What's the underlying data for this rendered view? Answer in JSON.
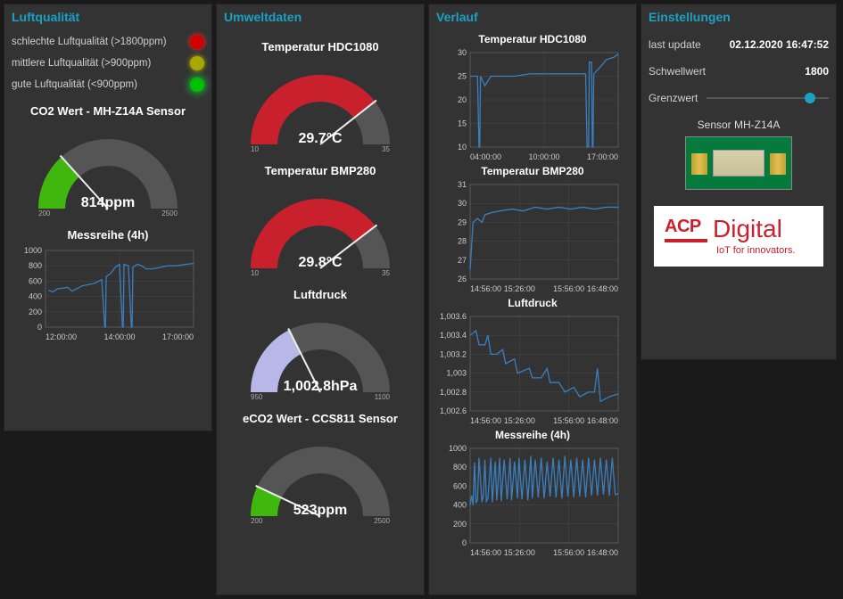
{
  "colors": {
    "panel_bg": "#333333",
    "title": "#1ba1c4",
    "grid": "#4a4a4a",
    "line": "#3a7fbf",
    "text": "#d0d0d0",
    "white": "#ffffff",
    "gauge_track": "#555555",
    "gauge_green": "#3fb70f",
    "gauge_red": "#c8202c",
    "gauge_lav": "#b8b8e8",
    "led_red": "#d00000",
    "led_yellow": "#a8a800",
    "led_green": "#00c000",
    "brand": "#c9202c"
  },
  "luft": {
    "title": "Luftqualität",
    "legend": {
      "bad": {
        "label": "schlechte Luftqualität (>1800ppm)",
        "color": "#d00000"
      },
      "mid": {
        "label": "mittlere Luftqualität (>900ppm)",
        "color": "#a8a800"
      },
      "good": {
        "label": "gute Luftqualität (<900ppm)",
        "color": "#00c000"
      }
    },
    "co2": {
      "title": "CO2 Wert - MH-Z14A Sensor",
      "type": "gauge",
      "min": 200,
      "max": 2500,
      "value": 814,
      "unit": "ppm",
      "fill_color": "#3fb70f",
      "fraction": 0.267,
      "track_color": "#555555",
      "tick_min": "200",
      "tick_max": "2500"
    },
    "mess4h": {
      "title": "Messreihe (4h)",
      "type": "line",
      "ylim": [
        0,
        1000
      ],
      "yticks": [
        0,
        200,
        400,
        600,
        800,
        1000
      ],
      "xticks": [
        "12:00:00",
        "14:00:00",
        "17:00:00"
      ],
      "line_color": "#3a7fbf",
      "grid_color": "#4a4a4a",
      "series": [
        [
          0.02,
          480
        ],
        [
          0.05,
          460
        ],
        [
          0.08,
          500
        ],
        [
          0.12,
          510
        ],
        [
          0.15,
          520
        ],
        [
          0.18,
          470
        ],
        [
          0.22,
          510
        ],
        [
          0.25,
          540
        ],
        [
          0.3,
          560
        ],
        [
          0.33,
          570
        ],
        [
          0.36,
          600
        ],
        [
          0.38,
          620
        ],
        [
          0.4,
          0
        ],
        [
          0.405,
          0
        ],
        [
          0.41,
          660
        ],
        [
          0.44,
          700
        ],
        [
          0.47,
          780
        ],
        [
          0.5,
          820
        ],
        [
          0.52,
          0
        ],
        [
          0.525,
          0
        ],
        [
          0.53,
          820
        ],
        [
          0.56,
          800
        ],
        [
          0.58,
          0
        ],
        [
          0.585,
          0
        ],
        [
          0.59,
          780
        ],
        [
          0.62,
          820
        ],
        [
          0.65,
          800
        ],
        [
          0.68,
          760
        ],
        [
          0.72,
          760
        ],
        [
          0.78,
          780
        ],
        [
          0.82,
          800
        ],
        [
          0.88,
          800
        ],
        [
          0.95,
          820
        ],
        [
          1.0,
          830
        ]
      ]
    }
  },
  "umwelt": {
    "title": "Umweltdaten",
    "hdc": {
      "title": "Temperatur HDC1080",
      "type": "gauge",
      "min": 10,
      "max": 35,
      "value": 29.7,
      "unit": "°C",
      "fill_color": "#c8202c",
      "fraction": 0.788,
      "track_color": "#555555",
      "tick_min": "10",
      "tick_max": "35",
      "display": "29.7°C"
    },
    "bmp": {
      "title": "Temperatur BMP280",
      "type": "gauge",
      "min": 10,
      "max": 35,
      "value": 29.8,
      "unit": "°C",
      "fill_color": "#c8202c",
      "fraction": 0.792,
      "track_color": "#555555",
      "tick_min": "10",
      "tick_max": "35",
      "display": "29.8°C"
    },
    "druck": {
      "title": "Luftdruck",
      "type": "gauge",
      "min": 950,
      "max": 1100,
      "value": 1002.8,
      "unit": "hPa",
      "fill_color": "#b8b8e8",
      "fraction": 0.352,
      "track_color": "#555555",
      "tick_min": "950",
      "tick_max": "1100",
      "display": "1,002.8hPa"
    },
    "eco2": {
      "title": "eCO2 Wert - CCS811 Sensor",
      "type": "gauge",
      "min": 200,
      "max": 2500,
      "value": 523,
      "unit": "ppm",
      "fill_color": "#3fb70f",
      "fraction": 0.14,
      "track_color": "#555555",
      "tick_min": "200",
      "tick_max": "2500",
      "display": "523ppm"
    }
  },
  "verlauf": {
    "title": "Verlauf",
    "hdc_chart": {
      "title": "Temperatur HDC1080",
      "type": "line",
      "ylim": [
        10,
        30
      ],
      "yticks": [
        10,
        15,
        20,
        25,
        30
      ],
      "xticks": [
        "04:00:00",
        "10:00:00",
        "17:00:00"
      ],
      "line_color": "#3a7fbf",
      "grid_color": "#4a4a4a",
      "series": [
        [
          0.0,
          25
        ],
        [
          0.05,
          25
        ],
        [
          0.06,
          10
        ],
        [
          0.065,
          10
        ],
        [
          0.07,
          25
        ],
        [
          0.1,
          23
        ],
        [
          0.14,
          25
        ],
        [
          0.18,
          25
        ],
        [
          0.3,
          25
        ],
        [
          0.4,
          25.5
        ],
        [
          0.55,
          25.5
        ],
        [
          0.7,
          25.5
        ],
        [
          0.78,
          25.5
        ],
        [
          0.79,
          10
        ],
        [
          0.8,
          10
        ],
        [
          0.805,
          28
        ],
        [
          0.82,
          28
        ],
        [
          0.825,
          10
        ],
        [
          0.83,
          10
        ],
        [
          0.835,
          25.5
        ],
        [
          0.88,
          27
        ],
        [
          0.92,
          28.5
        ],
        [
          0.97,
          29
        ],
        [
          1.0,
          29.7
        ]
      ]
    },
    "bmp_chart": {
      "title": "Temperatur BMP280",
      "type": "line",
      "ylim": [
        26,
        31
      ],
      "yticks": [
        26,
        27,
        28,
        29,
        30,
        31
      ],
      "xticks": [
        "14:56:00",
        "15:26:00",
        "15:56:00",
        "16:48:00"
      ],
      "line_color": "#3a7fbf",
      "grid_color": "#4a4a4a",
      "series": [
        [
          0.0,
          26.5
        ],
        [
          0.02,
          29
        ],
        [
          0.05,
          29.2
        ],
        [
          0.08,
          29
        ],
        [
          0.1,
          29.4
        ],
        [
          0.14,
          29.5
        ],
        [
          0.2,
          29.6
        ],
        [
          0.28,
          29.7
        ],
        [
          0.36,
          29.6
        ],
        [
          0.44,
          29.8
        ],
        [
          0.52,
          29.7
        ],
        [
          0.6,
          29.8
        ],
        [
          0.68,
          29.7
        ],
        [
          0.76,
          29.8
        ],
        [
          0.84,
          29.7
        ],
        [
          0.92,
          29.8
        ],
        [
          1.0,
          29.8
        ]
      ]
    },
    "druck_chart": {
      "title": "Luftdruck",
      "type": "line",
      "ylim": [
        1002.6,
        1003.6
      ],
      "yticks": [
        1002.6,
        1002.8,
        1003,
        1003.2,
        1003.4,
        1003.6
      ],
      "ytick_labels": [
        "1,002.6",
        "1,002.8",
        "1,003",
        "1,003.2",
        "1,003.4",
        "1,003.6"
      ],
      "xticks": [
        "14:56:00",
        "15:26:00",
        "15:56:00",
        "16:48:00"
      ],
      "line_color": "#3a7fbf",
      "grid_color": "#4a4a4a",
      "series": [
        [
          0.0,
          1003.4
        ],
        [
          0.04,
          1003.45
        ],
        [
          0.06,
          1003.3
        ],
        [
          0.1,
          1003.3
        ],
        [
          0.12,
          1003.4
        ],
        [
          0.14,
          1003.2
        ],
        [
          0.18,
          1003.2
        ],
        [
          0.22,
          1003.25
        ],
        [
          0.24,
          1003.1
        ],
        [
          0.3,
          1003.15
        ],
        [
          0.32,
          1003.0
        ],
        [
          0.4,
          1003.05
        ],
        [
          0.42,
          1002.95
        ],
        [
          0.48,
          1002.95
        ],
        [
          0.52,
          1003.05
        ],
        [
          0.54,
          1002.9
        ],
        [
          0.6,
          1002.9
        ],
        [
          0.64,
          1002.8
        ],
        [
          0.7,
          1002.85
        ],
        [
          0.74,
          1002.75
        ],
        [
          0.8,
          1002.8
        ],
        [
          0.84,
          1002.8
        ],
        [
          0.86,
          1003.05
        ],
        [
          0.88,
          1002.7
        ],
        [
          0.94,
          1002.75
        ],
        [
          1.0,
          1002.78
        ]
      ]
    },
    "mess_chart": {
      "title": "Messreihe (4h)",
      "type": "line",
      "ylim": [
        0,
        1000
      ],
      "yticks": [
        0,
        200,
        400,
        600,
        800,
        1000
      ],
      "xticks": [
        "14:56:00",
        "15:26:00",
        "15:56:00",
        "16:48:00"
      ],
      "line_color": "#3a7fbf",
      "grid_color": "#4a4a4a",
      "series": [
        [
          0.0,
          400
        ],
        [
          0.01,
          500
        ],
        [
          0.02,
          400
        ],
        [
          0.03,
          850
        ],
        [
          0.04,
          420
        ],
        [
          0.05,
          460
        ],
        [
          0.06,
          900
        ],
        [
          0.08,
          430
        ],
        [
          0.09,
          500
        ],
        [
          0.1,
          880
        ],
        [
          0.11,
          440
        ],
        [
          0.12,
          470
        ],
        [
          0.14,
          900
        ],
        [
          0.15,
          430
        ],
        [
          0.17,
          860
        ],
        [
          0.18,
          450
        ],
        [
          0.2,
          900
        ],
        [
          0.21,
          440
        ],
        [
          0.23,
          880
        ],
        [
          0.25,
          460
        ],
        [
          0.27,
          900
        ],
        [
          0.28,
          450
        ],
        [
          0.3,
          860
        ],
        [
          0.32,
          470
        ],
        [
          0.33,
          900
        ],
        [
          0.35,
          460
        ],
        [
          0.37,
          880
        ],
        [
          0.39,
          450
        ],
        [
          0.41,
          920
        ],
        [
          0.42,
          470
        ],
        [
          0.44,
          880
        ],
        [
          0.46,
          480
        ],
        [
          0.48,
          900
        ],
        [
          0.5,
          470
        ],
        [
          0.52,
          860
        ],
        [
          0.54,
          490
        ],
        [
          0.56,
          900
        ],
        [
          0.58,
          480
        ],
        [
          0.6,
          880
        ],
        [
          0.62,
          470
        ],
        [
          0.64,
          920
        ],
        [
          0.66,
          490
        ],
        [
          0.68,
          880
        ],
        [
          0.7,
          480
        ],
        [
          0.72,
          900
        ],
        [
          0.74,
          490
        ],
        [
          0.76,
          880
        ],
        [
          0.78,
          480
        ],
        [
          0.8,
          900
        ],
        [
          0.82,
          500
        ],
        [
          0.84,
          880
        ],
        [
          0.86,
          500
        ],
        [
          0.88,
          900
        ],
        [
          0.9,
          510
        ],
        [
          0.92,
          880
        ],
        [
          0.94,
          500
        ],
        [
          0.96,
          900
        ],
        [
          0.98,
          510
        ],
        [
          1.0,
          520
        ]
      ]
    }
  },
  "einst": {
    "title": "Einstellungen",
    "last_update": {
      "label": "last update",
      "value": "02.12.2020 16:47:52"
    },
    "schwellwert": {
      "label": "Schwellwert",
      "value": "1800"
    },
    "grenzwert": {
      "label": "Grenzwert",
      "slider_pos": 0.8
    },
    "sensor_label": "Sensor MH-Z14A",
    "brand": {
      "acp": "ACP",
      "digital": "Digital",
      "tagline": "IoT for innovators."
    }
  }
}
